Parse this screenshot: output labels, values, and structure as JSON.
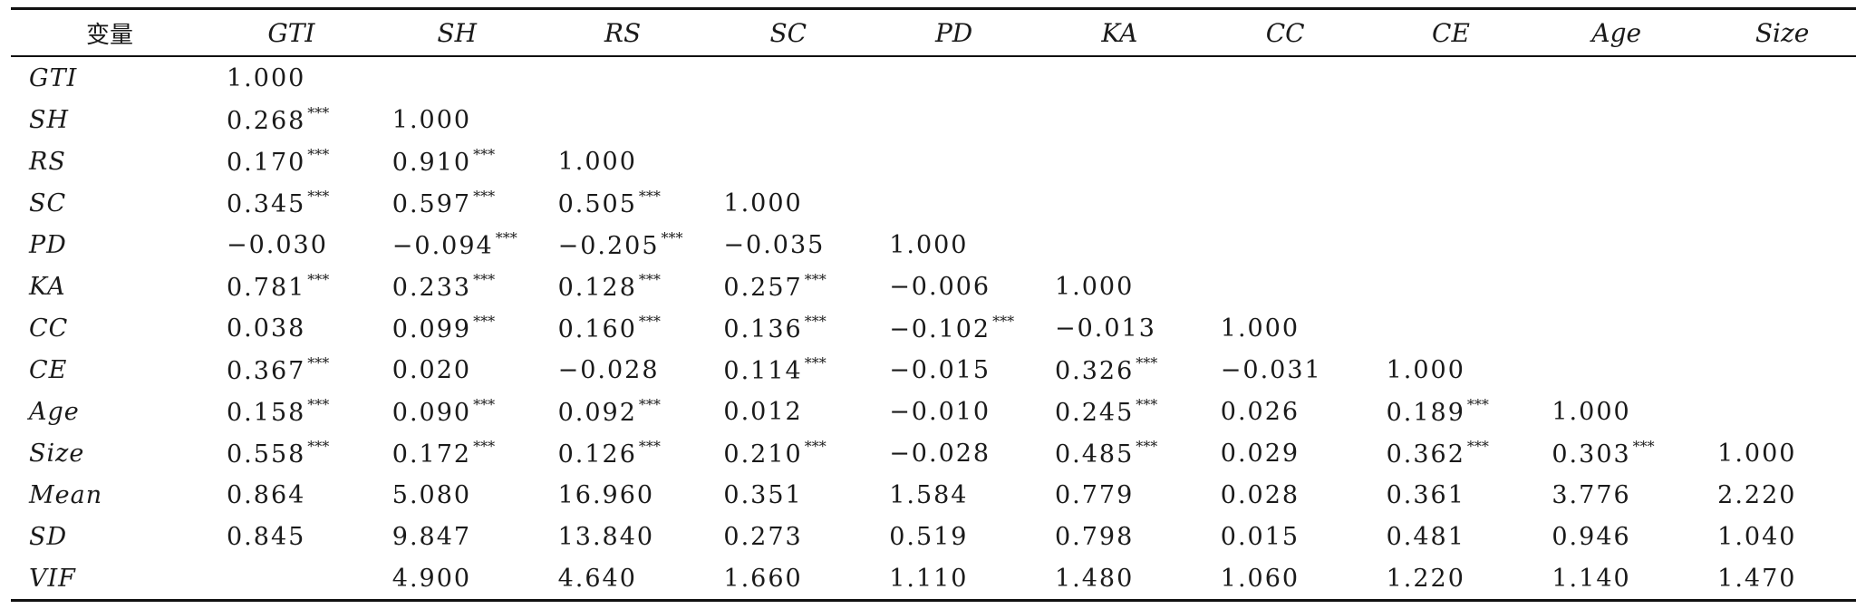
{
  "table": {
    "headers": [
      "变量",
      "GTI",
      "SH",
      "RS",
      "SC",
      "PD",
      "KA",
      "CC",
      "CE",
      "Age",
      "Size"
    ],
    "rows": [
      {
        "label": "GTI",
        "cells": [
          {
            "v": "1.000",
            "s": ""
          }
        ]
      },
      {
        "label": "SH",
        "cells": [
          {
            "v": "0.268",
            "s": "***"
          },
          {
            "v": "1.000",
            "s": ""
          }
        ]
      },
      {
        "label": "RS",
        "cells": [
          {
            "v": "0.170",
            "s": "***"
          },
          {
            "v": "0.910",
            "s": "***"
          },
          {
            "v": "1.000",
            "s": ""
          }
        ]
      },
      {
        "label": "SC",
        "cells": [
          {
            "v": "0.345",
            "s": "***"
          },
          {
            "v": "0.597",
            "s": "***"
          },
          {
            "v": "0.505",
            "s": "***"
          },
          {
            "v": "1.000",
            "s": ""
          }
        ]
      },
      {
        "label": "PD",
        "cells": [
          {
            "v": "−0.030",
            "s": ""
          },
          {
            "v": "−0.094",
            "s": "***"
          },
          {
            "v": "−0.205",
            "s": "***"
          },
          {
            "v": "−0.035",
            "s": ""
          },
          {
            "v": "1.000",
            "s": ""
          }
        ]
      },
      {
        "label": "KA",
        "cells": [
          {
            "v": "0.781",
            "s": "***"
          },
          {
            "v": "0.233",
            "s": "***"
          },
          {
            "v": "0.128",
            "s": "***"
          },
          {
            "v": "0.257",
            "s": "***"
          },
          {
            "v": "−0.006",
            "s": ""
          },
          {
            "v": "1.000",
            "s": ""
          }
        ]
      },
      {
        "label": "CC",
        "cells": [
          {
            "v": "0.038",
            "s": ""
          },
          {
            "v": "0.099",
            "s": "***"
          },
          {
            "v": "0.160",
            "s": "***"
          },
          {
            "v": "0.136",
            "s": "***"
          },
          {
            "v": "−0.102",
            "s": "***"
          },
          {
            "v": "−0.013",
            "s": ""
          },
          {
            "v": "1.000",
            "s": ""
          }
        ]
      },
      {
        "label": "CE",
        "cells": [
          {
            "v": "0.367",
            "s": "***"
          },
          {
            "v": "0.020",
            "s": ""
          },
          {
            "v": "−0.028",
            "s": ""
          },
          {
            "v": "0.114",
            "s": "***"
          },
          {
            "v": "−0.015",
            "s": ""
          },
          {
            "v": "0.326",
            "s": "***"
          },
          {
            "v": "−0.031",
            "s": ""
          },
          {
            "v": "1.000",
            "s": ""
          }
        ]
      },
      {
        "label": "Age",
        "cells": [
          {
            "v": "0.158",
            "s": "***"
          },
          {
            "v": "0.090",
            "s": "***"
          },
          {
            "v": "0.092",
            "s": "***"
          },
          {
            "v": "0.012",
            "s": ""
          },
          {
            "v": "−0.010",
            "s": ""
          },
          {
            "v": "0.245",
            "s": "***"
          },
          {
            "v": "0.026",
            "s": ""
          },
          {
            "v": "0.189",
            "s": "***"
          },
          {
            "v": "1.000",
            "s": ""
          }
        ]
      },
      {
        "label": "Size",
        "cells": [
          {
            "v": "0.558",
            "s": "***"
          },
          {
            "v": "0.172",
            "s": "***"
          },
          {
            "v": "0.126",
            "s": "***"
          },
          {
            "v": "0.210",
            "s": "***"
          },
          {
            "v": "−0.028",
            "s": ""
          },
          {
            "v": "0.485",
            "s": "***"
          },
          {
            "v": "0.029",
            "s": ""
          },
          {
            "v": "0.362",
            "s": "***"
          },
          {
            "v": "0.303",
            "s": "***"
          },
          {
            "v": "1.000",
            "s": ""
          }
        ]
      },
      {
        "label": "Mean",
        "cells": [
          {
            "v": "0.864",
            "s": ""
          },
          {
            "v": "5.080",
            "s": ""
          },
          {
            "v": "16.960",
            "s": ""
          },
          {
            "v": "0.351",
            "s": ""
          },
          {
            "v": "1.584",
            "s": ""
          },
          {
            "v": "0.779",
            "s": ""
          },
          {
            "v": "0.028",
            "s": ""
          },
          {
            "v": "0.361",
            "s": ""
          },
          {
            "v": "3.776",
            "s": ""
          },
          {
            "v": "2.220",
            "s": ""
          }
        ]
      },
      {
        "label": "SD",
        "cells": [
          {
            "v": "0.845",
            "s": ""
          },
          {
            "v": "9.847",
            "s": ""
          },
          {
            "v": "13.840",
            "s": ""
          },
          {
            "v": "0.273",
            "s": ""
          },
          {
            "v": "0.519",
            "s": ""
          },
          {
            "v": "0.798",
            "s": ""
          },
          {
            "v": "0.015",
            "s": ""
          },
          {
            "v": "0.481",
            "s": ""
          },
          {
            "v": "0.946",
            "s": ""
          },
          {
            "v": "1.040",
            "s": ""
          }
        ]
      },
      {
        "label": "VIF",
        "cells": [
          {
            "v": "",
            "s": ""
          },
          {
            "v": "4.900",
            "s": ""
          },
          {
            "v": "4.640",
            "s": ""
          },
          {
            "v": "1.660",
            "s": ""
          },
          {
            "v": "1.110",
            "s": ""
          },
          {
            "v": "1.480",
            "s": ""
          },
          {
            "v": "1.060",
            "s": ""
          },
          {
            "v": "1.220",
            "s": ""
          },
          {
            "v": "1.140",
            "s": ""
          },
          {
            "v": "1.470",
            "s": ""
          }
        ]
      }
    ]
  }
}
